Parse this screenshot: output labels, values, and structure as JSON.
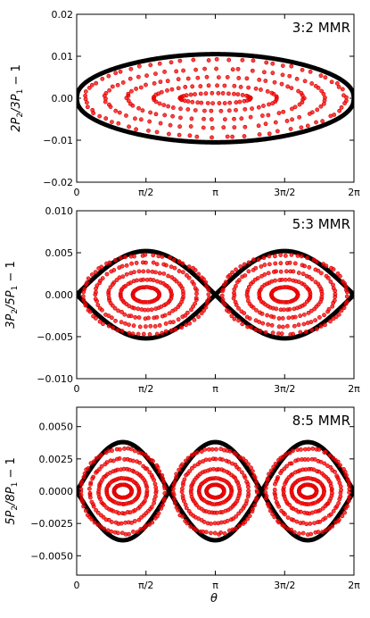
{
  "figure": {
    "xlabel": "θ",
    "x_tick_labels": [
      "0",
      "π/2",
      "π",
      "3π/2",
      "2π"
    ],
    "colors": {
      "separatrix": "#000000",
      "orbit_points": "#ff0000",
      "orbit_edge": "#cc0000",
      "frame": "#000000"
    }
  },
  "chart_data": [
    {
      "type": "scatter",
      "panel_label": "3:2 MMR",
      "ylabel_main": "2P",
      "ylabel_sub1": "2",
      "ylabel_mid": "/3P",
      "ylabel_sub2": "1",
      "ylabel_tail": " − 1",
      "xlim": [
        0,
        6.2832
      ],
      "ylim": [
        -0.02,
        0.02
      ],
      "x_ticks": [
        0,
        1.5708,
        3.1416,
        4.7124,
        6.2832
      ],
      "y_ticks": [
        -0.02,
        -0.01,
        0.0,
        0.01,
        0.02
      ],
      "y_tick_labels": [
        "−0.02",
        "−0.01",
        "0.00",
        "0.01",
        "0.02"
      ],
      "islands": 1,
      "separatrix_amplitude": 0.0105,
      "orbit_amplitudes": [
        0.0092,
        0.007,
        0.005,
        0.003,
        0.0012
      ],
      "orbit_x_halfwidths": [
        2.95,
        2.5,
        2.0,
        1.4,
        0.8
      ]
    },
    {
      "type": "scatter",
      "panel_label": "5:3 MMR",
      "ylabel_main": "3P",
      "ylabel_sub1": "2",
      "ylabel_mid": "/5P",
      "ylabel_sub2": "1",
      "ylabel_tail": " − 1",
      "xlim": [
        0,
        6.2832
      ],
      "ylim": [
        -0.01,
        0.01
      ],
      "x_ticks": [
        0,
        1.5708,
        3.1416,
        4.7124,
        6.2832
      ],
      "y_ticks": [
        -0.01,
        -0.005,
        0.0,
        0.005,
        0.01
      ],
      "y_tick_labels": [
        "−0.010",
        "−0.005",
        "0.000",
        "0.005",
        "0.010"
      ],
      "islands": 2,
      "separatrix_amplitude": 0.0052,
      "orbit_amplitudes": [
        0.0047,
        0.0038,
        0.0028,
        0.0018,
        0.0009
      ],
      "orbit_x_halfwidths": [
        1.42,
        1.15,
        0.85,
        0.58,
        0.3
      ]
    },
    {
      "type": "scatter",
      "panel_label": "8:5 MMR",
      "ylabel_main": "5P",
      "ylabel_sub1": "2",
      "ylabel_mid": "/8P",
      "ylabel_sub2": "1",
      "ylabel_tail": " − 1",
      "xlim": [
        0,
        6.2832
      ],
      "ylim": [
        -0.0065,
        0.0065
      ],
      "x_ticks": [
        0,
        1.5708,
        3.1416,
        4.7124,
        6.2832
      ],
      "y_ticks": [
        -0.005,
        -0.0025,
        0.0,
        0.0025,
        0.005
      ],
      "y_tick_labels": [
        "−0.0050",
        "−0.0025",
        "0.0000",
        "0.0025",
        "0.0050"
      ],
      "islands": 3,
      "separatrix_amplitude": 0.0038,
      "orbit_amplitudes": [
        0.0033,
        0.0025,
        0.0017,
        0.001,
        0.0005
      ],
      "orbit_x_halfwidths": [
        0.95,
        0.75,
        0.55,
        0.37,
        0.2
      ]
    }
  ]
}
